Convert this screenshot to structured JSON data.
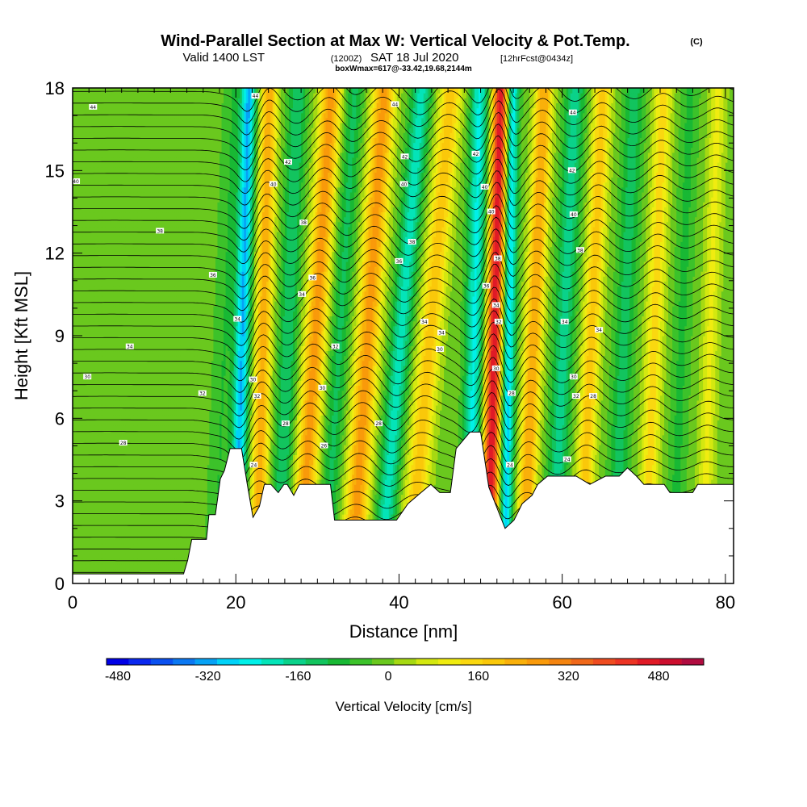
{
  "title": {
    "main": "Wind-Parallel Section at Max W: Vertical Velocity & Pot.Temp.",
    "copyright": "(C)",
    "valid_prefix": "Valid 1400 LST",
    "valid_utc": "(1200Z)",
    "valid_date": "SAT 18 Jul 2020",
    "forecast": "[12hrFcst@0434z]",
    "box_info": "boxWmax=617@-33.42,19.68,2144m"
  },
  "chart_data": {
    "type": "heatmap",
    "xlabel": "Distance [nm]",
    "ylabel": "Height [Kft MSL]",
    "xlim": [
      0,
      81
    ],
    "ylim": [
      0,
      18
    ],
    "x_ticks": [
      0,
      20,
      40,
      60,
      80
    ],
    "y_ticks": [
      0,
      3,
      6,
      9,
      12,
      15,
      18
    ],
    "field": "Vertical Velocity",
    "overlay": "Potential temperature contours",
    "w_bands": [
      {
        "x_top": 5.7,
        "x_bottom": 3.6,
        "w": 10,
        "half_width": 1.8
      },
      {
        "x_top": 19.8,
        "x_bottom": 17.4,
        "w": -60,
        "half_width": 1.3
      },
      {
        "x_top": 21.6,
        "x_bottom": 20.0,
        "w": -300,
        "half_width": 0.9
      },
      {
        "x_top": 24.1,
        "x_bottom": 22.6,
        "w": 250,
        "half_width": 1.0
      },
      {
        "x_top": 27.6,
        "x_bottom": 25.2,
        "w": -140,
        "half_width": 1.1
      },
      {
        "x_top": 31.7,
        "x_bottom": 27.8,
        "w": 280,
        "half_width": 1.3
      },
      {
        "x_top": 34.6,
        "x_bottom": 30.9,
        "w": -110,
        "half_width": 1.1
      },
      {
        "x_top": 38.2,
        "x_bottom": 34.2,
        "w": 280,
        "half_width": 1.4
      },
      {
        "x_top": 42.8,
        "x_bottom": 37.7,
        "w": -200,
        "half_width": 1.2
      },
      {
        "x_top": 46.4,
        "x_bottom": 41.2,
        "w": 200,
        "half_width": 1.4
      },
      {
        "x_top": 49.9,
        "x_bottom": 48.6,
        "w": -230,
        "half_width": 1.1
      },
      {
        "x_top": 52.5,
        "x_bottom": 50.9,
        "w": 500,
        "half_width": 1.0
      },
      {
        "x_top": 53.9,
        "x_bottom": 53.0,
        "w": -280,
        "half_width": 0.8
      },
      {
        "x_top": 57.8,
        "x_bottom": 55.2,
        "w": 260,
        "half_width": 1.1
      },
      {
        "x_top": 61.6,
        "x_bottom": 58.8,
        "w": -160,
        "half_width": 1.2
      },
      {
        "x_top": 65.0,
        "x_bottom": 62.2,
        "w": 200,
        "half_width": 1.1
      },
      {
        "x_top": 68.9,
        "x_bottom": 66.3,
        "w": -120,
        "half_width": 1.2
      },
      {
        "x_top": 72.4,
        "x_bottom": 70.2,
        "w": 160,
        "half_width": 1.1
      },
      {
        "x_top": 75.7,
        "x_bottom": 73.6,
        "w": -70,
        "half_width": 1.1
      },
      {
        "x_top": 79.1,
        "x_bottom": 77.2,
        "w": 110,
        "half_width": 1.0
      }
    ],
    "terrain": [
      [
        0,
        0.35
      ],
      [
        13.6,
        0.35
      ],
      [
        14.1,
        0.85
      ],
      [
        14.6,
        1.6
      ],
      [
        15.5,
        1.6
      ],
      [
        16.1,
        1.6
      ],
      [
        16.4,
        1.6
      ],
      [
        16.7,
        2.5
      ],
      [
        17.5,
        2.5
      ],
      [
        18.1,
        3.8
      ],
      [
        18.6,
        4.1
      ],
      [
        19.3,
        4.9
      ],
      [
        20.7,
        4.9
      ],
      [
        21.4,
        3.6
      ],
      [
        22.1,
        2.4
      ],
      [
        22.9,
        2.8
      ],
      [
        23.5,
        3.6
      ],
      [
        24.3,
        3.6
      ],
      [
        25.2,
        3.3
      ],
      [
        25.9,
        3.6
      ],
      [
        26.3,
        3.6
      ],
      [
        27.1,
        3.2
      ],
      [
        27.8,
        3.6
      ],
      [
        28.7,
        3.6
      ],
      [
        29.7,
        3.6
      ],
      [
        31.6,
        3.6
      ],
      [
        32.1,
        2.3
      ],
      [
        33.4,
        2.3
      ],
      [
        37.1,
        2.3
      ],
      [
        39.7,
        2.3
      ],
      [
        41.1,
        2.9
      ],
      [
        42.7,
        3.3
      ],
      [
        43.9,
        3.6
      ],
      [
        45.0,
        3.3
      ],
      [
        46.3,
        3.3
      ],
      [
        47.0,
        4.9
      ],
      [
        48.7,
        5.5
      ],
      [
        50.0,
        5.5
      ],
      [
        51.0,
        3.5
      ],
      [
        52.2,
        2.6
      ],
      [
        53.0,
        2.0
      ],
      [
        54.1,
        2.3
      ],
      [
        55.1,
        2.9
      ],
      [
        56.3,
        3.2
      ],
      [
        57.0,
        3.6
      ],
      [
        58.2,
        3.9
      ],
      [
        60.2,
        3.9
      ],
      [
        61.7,
        3.9
      ],
      [
        63.4,
        3.6
      ],
      [
        65.3,
        3.9
      ],
      [
        67.0,
        3.9
      ],
      [
        68.0,
        4.2
      ],
      [
        69.1,
        3.9
      ],
      [
        70.0,
        3.6
      ],
      [
        72.5,
        3.6
      ],
      [
        73.2,
        3.3
      ],
      [
        76.0,
        3.3
      ],
      [
        76.6,
        3.6
      ],
      [
        81,
        3.6
      ]
    ],
    "contour_levels": 42,
    "contour_labels": [
      {
        "x": 2.5,
        "y": 17.3,
        "text": "44"
      },
      {
        "x": 0.4,
        "y": 14.6,
        "text": "40"
      },
      {
        "x": 10.7,
        "y": 12.8,
        "text": "38"
      },
      {
        "x": 17.2,
        "y": 11.2,
        "text": "36"
      },
      {
        "x": 7.0,
        "y": 8.6,
        "text": "34"
      },
      {
        "x": 1.8,
        "y": 7.5,
        "text": "30"
      },
      {
        "x": 6.2,
        "y": 5.1,
        "text": "28"
      },
      {
        "x": 15.9,
        "y": 6.9,
        "text": "32"
      },
      {
        "x": 22.4,
        "y": 17.7,
        "text": "44"
      },
      {
        "x": 26.4,
        "y": 15.3,
        "text": "42"
      },
      {
        "x": 24.6,
        "y": 14.5,
        "text": "40"
      },
      {
        "x": 28.3,
        "y": 13.1,
        "text": "38"
      },
      {
        "x": 29.4,
        "y": 11.1,
        "text": "36"
      },
      {
        "x": 28.1,
        "y": 10.5,
        "text": "34"
      },
      {
        "x": 20.2,
        "y": 9.6,
        "text": "34"
      },
      {
        "x": 22.1,
        "y": 7.4,
        "text": "30"
      },
      {
        "x": 22.6,
        "y": 6.8,
        "text": "32"
      },
      {
        "x": 26.1,
        "y": 5.8,
        "text": "28"
      },
      {
        "x": 22.2,
        "y": 4.3,
        "text": "24"
      },
      {
        "x": 32.2,
        "y": 8.6,
        "text": "32"
      },
      {
        "x": 30.6,
        "y": 7.1,
        "text": "30"
      },
      {
        "x": 30.8,
        "y": 5.0,
        "text": "26"
      },
      {
        "x": 39.5,
        "y": 17.4,
        "text": "44"
      },
      {
        "x": 40.7,
        "y": 15.5,
        "text": "42"
      },
      {
        "x": 40.6,
        "y": 14.5,
        "text": "40"
      },
      {
        "x": 41.6,
        "y": 12.4,
        "text": "38"
      },
      {
        "x": 40.0,
        "y": 11.7,
        "text": "36"
      },
      {
        "x": 43.1,
        "y": 9.5,
        "text": "34"
      },
      {
        "x": 45.2,
        "y": 9.1,
        "text": "34"
      },
      {
        "x": 45.0,
        "y": 8.5,
        "text": "30"
      },
      {
        "x": 37.5,
        "y": 5.8,
        "text": "28"
      },
      {
        "x": 49.4,
        "y": 15.6,
        "text": "42"
      },
      {
        "x": 50.5,
        "y": 14.4,
        "text": "40"
      },
      {
        "x": 51.3,
        "y": 13.5,
        "text": "40"
      },
      {
        "x": 52.1,
        "y": 11.8,
        "text": "38"
      },
      {
        "x": 50.7,
        "y": 10.8,
        "text": "36"
      },
      {
        "x": 51.9,
        "y": 10.1,
        "text": "34"
      },
      {
        "x": 52.2,
        "y": 9.5,
        "text": "32"
      },
      {
        "x": 51.9,
        "y": 7.8,
        "text": "30"
      },
      {
        "x": 53.8,
        "y": 6.9,
        "text": "28"
      },
      {
        "x": 53.6,
        "y": 4.3,
        "text": "24"
      },
      {
        "x": 61.3,
        "y": 17.1,
        "text": "44"
      },
      {
        "x": 61.2,
        "y": 15.0,
        "text": "42"
      },
      {
        "x": 61.4,
        "y": 13.4,
        "text": "40"
      },
      {
        "x": 62.2,
        "y": 12.1,
        "text": "38"
      },
      {
        "x": 60.3,
        "y": 9.5,
        "text": "34"
      },
      {
        "x": 64.5,
        "y": 9.2,
        "text": "34"
      },
      {
        "x": 61.4,
        "y": 7.5,
        "text": "30"
      },
      {
        "x": 61.7,
        "y": 6.8,
        "text": "32"
      },
      {
        "x": 63.8,
        "y": 6.8,
        "text": "28"
      },
      {
        "x": 60.6,
        "y": 4.5,
        "text": "24"
      }
    ]
  },
  "colorbar": {
    "title": "Vertical Velocity [cm/s]",
    "min": -500,
    "max": 560,
    "step": 40,
    "tick_labels": [
      "-480",
      "-320",
      "-160",
      "0",
      "160",
      "320",
      "480"
    ],
    "tick_values": [
      -480,
      -320,
      -160,
      0,
      160,
      320,
      480
    ],
    "colors": [
      "#0000e6",
      "#0a28ef",
      "#0a50f0",
      "#0b78f2",
      "#06a2f5",
      "#01d2f8",
      "#01f0e8",
      "#04e4b8",
      "#0ad28a",
      "#12c45e",
      "#18b834",
      "#3cc22a",
      "#6ac81e",
      "#a6d912",
      "#d4e810",
      "#f0ec10",
      "#fad810",
      "#fac80a",
      "#f9b00a",
      "#f99a0a",
      "#f48410",
      "#f0681a",
      "#ef4c20",
      "#ec3424",
      "#e01a26",
      "#cc0e2e",
      "#b00c40"
    ]
  }
}
